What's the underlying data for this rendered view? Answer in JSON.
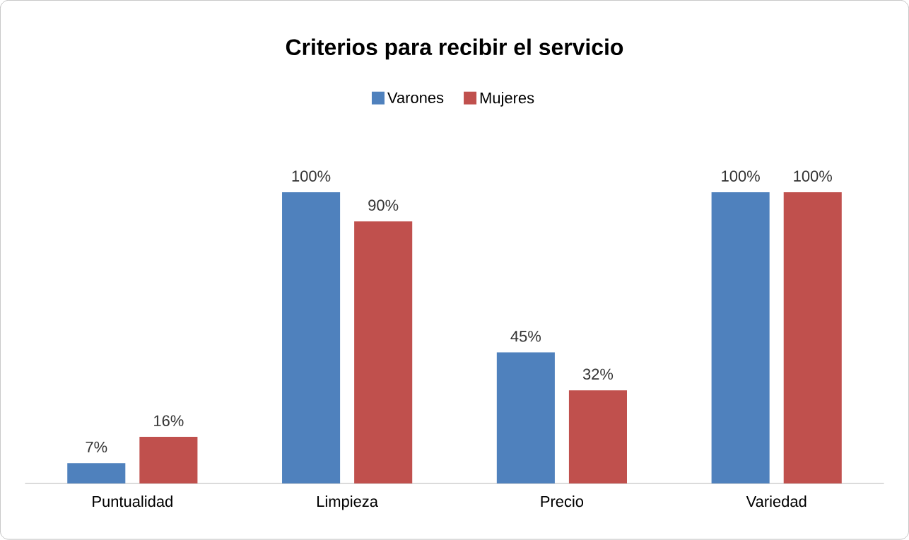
{
  "chart_data": {
    "type": "bar",
    "title": "Criterios para recibir el servicio",
    "categories": [
      "Puntualidad",
      "Limpieza",
      "Precio",
      "Variedad"
    ],
    "legend": "top",
    "tick_labels": "x",
    "series": [
      {
        "name": "Varones",
        "color": "#4f81bd",
        "values": [
          7,
          100,
          45,
          100
        ],
        "value_labels": [
          "7%",
          "100%",
          "45%",
          "100%"
        ]
      },
      {
        "name": "Mujeres",
        "color": "#c0504d",
        "values": [
          16,
          90,
          32,
          100
        ],
        "value_labels": [
          "16%",
          "90%",
          "32%",
          "100%"
        ]
      }
    ]
  }
}
